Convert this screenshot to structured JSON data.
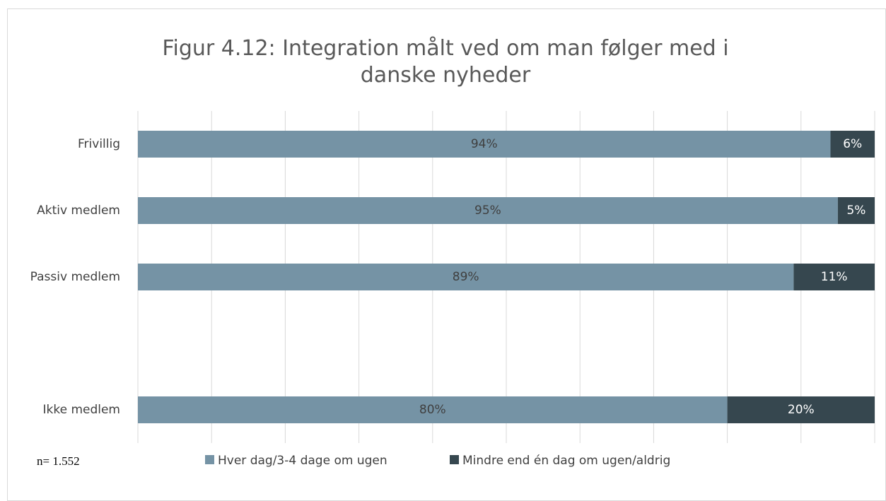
{
  "chart_data": {
    "type": "stacked_barh",
    "title": "Figur 4.12: Integration målt ved om man følger med i danske nyheder",
    "annotation": "n= 1.552",
    "categories": [
      "Frivillig",
      "Aktiv medlem",
      "Passiv medlem",
      null,
      "Ikke medlem"
    ],
    "series": [
      {
        "name": "Hver dag/3-4 dage om ugen",
        "color": "#7593a5",
        "values": [
          94,
          95,
          89,
          null,
          80
        ],
        "value_labels": [
          "94%",
          "95%",
          "89%",
          null,
          "80%"
        ]
      },
      {
        "name": "Mindre end én dag om ugen/aldrig",
        "color": "#36474f",
        "values": [
          6,
          5,
          11,
          null,
          20
        ],
        "value_labels": [
          "6%",
          "5%",
          "11%",
          null,
          "20%"
        ]
      }
    ],
    "xlim": [
      0,
      100
    ],
    "xticks": [
      0,
      10,
      20,
      30,
      40,
      50,
      60,
      70,
      80,
      90,
      100
    ],
    "grid": true,
    "legend": "bottom"
  }
}
